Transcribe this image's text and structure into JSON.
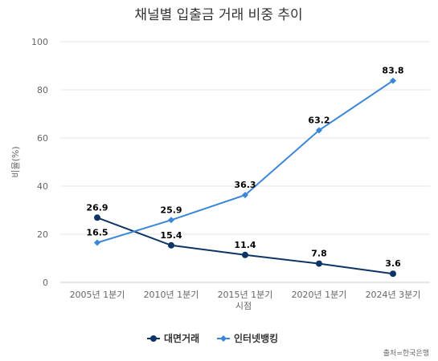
{
  "chart_data": {
    "type": "line",
    "title": "채널별 입출금 거래 비중 추이",
    "xlabel": "시점",
    "ylabel": "비율(%)",
    "categories": [
      "2005년 1분기",
      "2010년 1분기",
      "2015년 1분기",
      "2020년 1분기",
      "2024년 3분기"
    ],
    "ylim": [
      0,
      100
    ],
    "yticks": [
      0,
      20,
      40,
      60,
      80,
      100
    ],
    "grid": true,
    "legend_position": "bottom",
    "series": [
      {
        "name": "대면거래",
        "values": [
          26.9,
          15.4,
          11.4,
          7.8,
          3.6
        ],
        "color": "#0d3466",
        "marker": "circle"
      },
      {
        "name": "인터넷뱅킹",
        "values": [
          16.5,
          25.9,
          36.3,
          63.2,
          83.8
        ],
        "color": "#3a86d8",
        "marker": "diamond"
      }
    ],
    "source": "출처=한국은행"
  }
}
